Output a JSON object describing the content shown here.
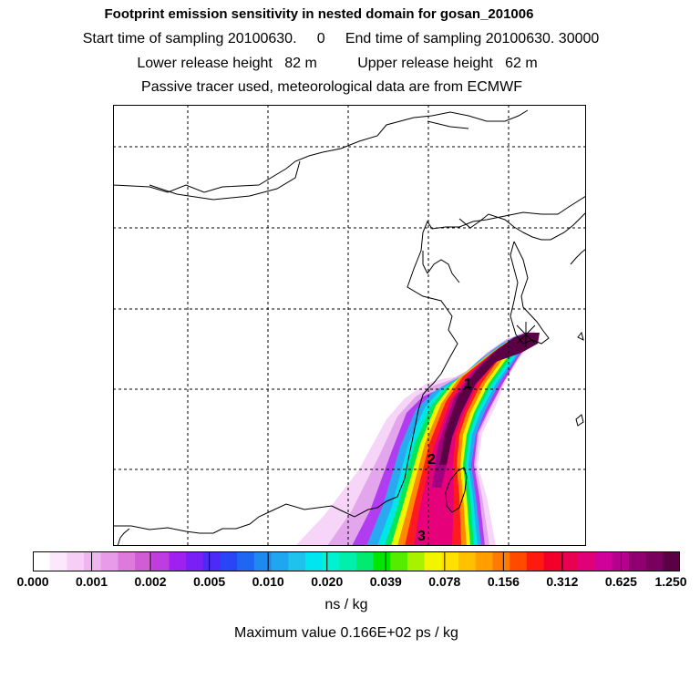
{
  "header": {
    "title": "Footprint emission sensitivity in nested domain for gosan_201006",
    "sampling_line": "Start time of sampling 20100630.     0     End time of sampling 20100630. 30000",
    "release_line": "Lower release height   82 m          Upper release height   62 m",
    "tracer_line": "Passive tracer used, meteorological data are from ECMWF"
  },
  "map": {
    "markers": [
      "1",
      "2",
      "3"
    ]
  },
  "colorbar": {
    "ticks": [
      "0.000",
      "0.001",
      "0.002",
      "0.005",
      "0.010",
      "0.020",
      "0.039",
      "0.078",
      "0.156",
      "0.312",
      "0.625",
      "1.250"
    ],
    "colors": [
      "#ffffff",
      "#fbe8fb",
      "#f5cff5",
      "#efb5ef",
      "#e89be8",
      "#dd7bdd",
      "#d05cd6",
      "#bf3de0",
      "#a020f0",
      "#7a1ff5",
      "#4e2af7",
      "#2a45f5",
      "#1f66f2",
      "#1e8af0",
      "#1ea6ee",
      "#1ec2ec",
      "#00e6f0",
      "#00f2d0",
      "#00efaa",
      "#00ea70",
      "#00e600",
      "#55ec00",
      "#a8f200",
      "#f2f500",
      "#ffe000",
      "#ffc000",
      "#ff9f00",
      "#ff7a00",
      "#ff4a00",
      "#ff1a10",
      "#f2002a",
      "#ea0050",
      "#e00078",
      "#d0009a",
      "#b80090",
      "#900070",
      "#7a005e",
      "#5c0046"
    ],
    "units": "ns / kg"
  },
  "footer": {
    "max_value": "Maximum value  0.166E+02 ps / kg"
  }
}
